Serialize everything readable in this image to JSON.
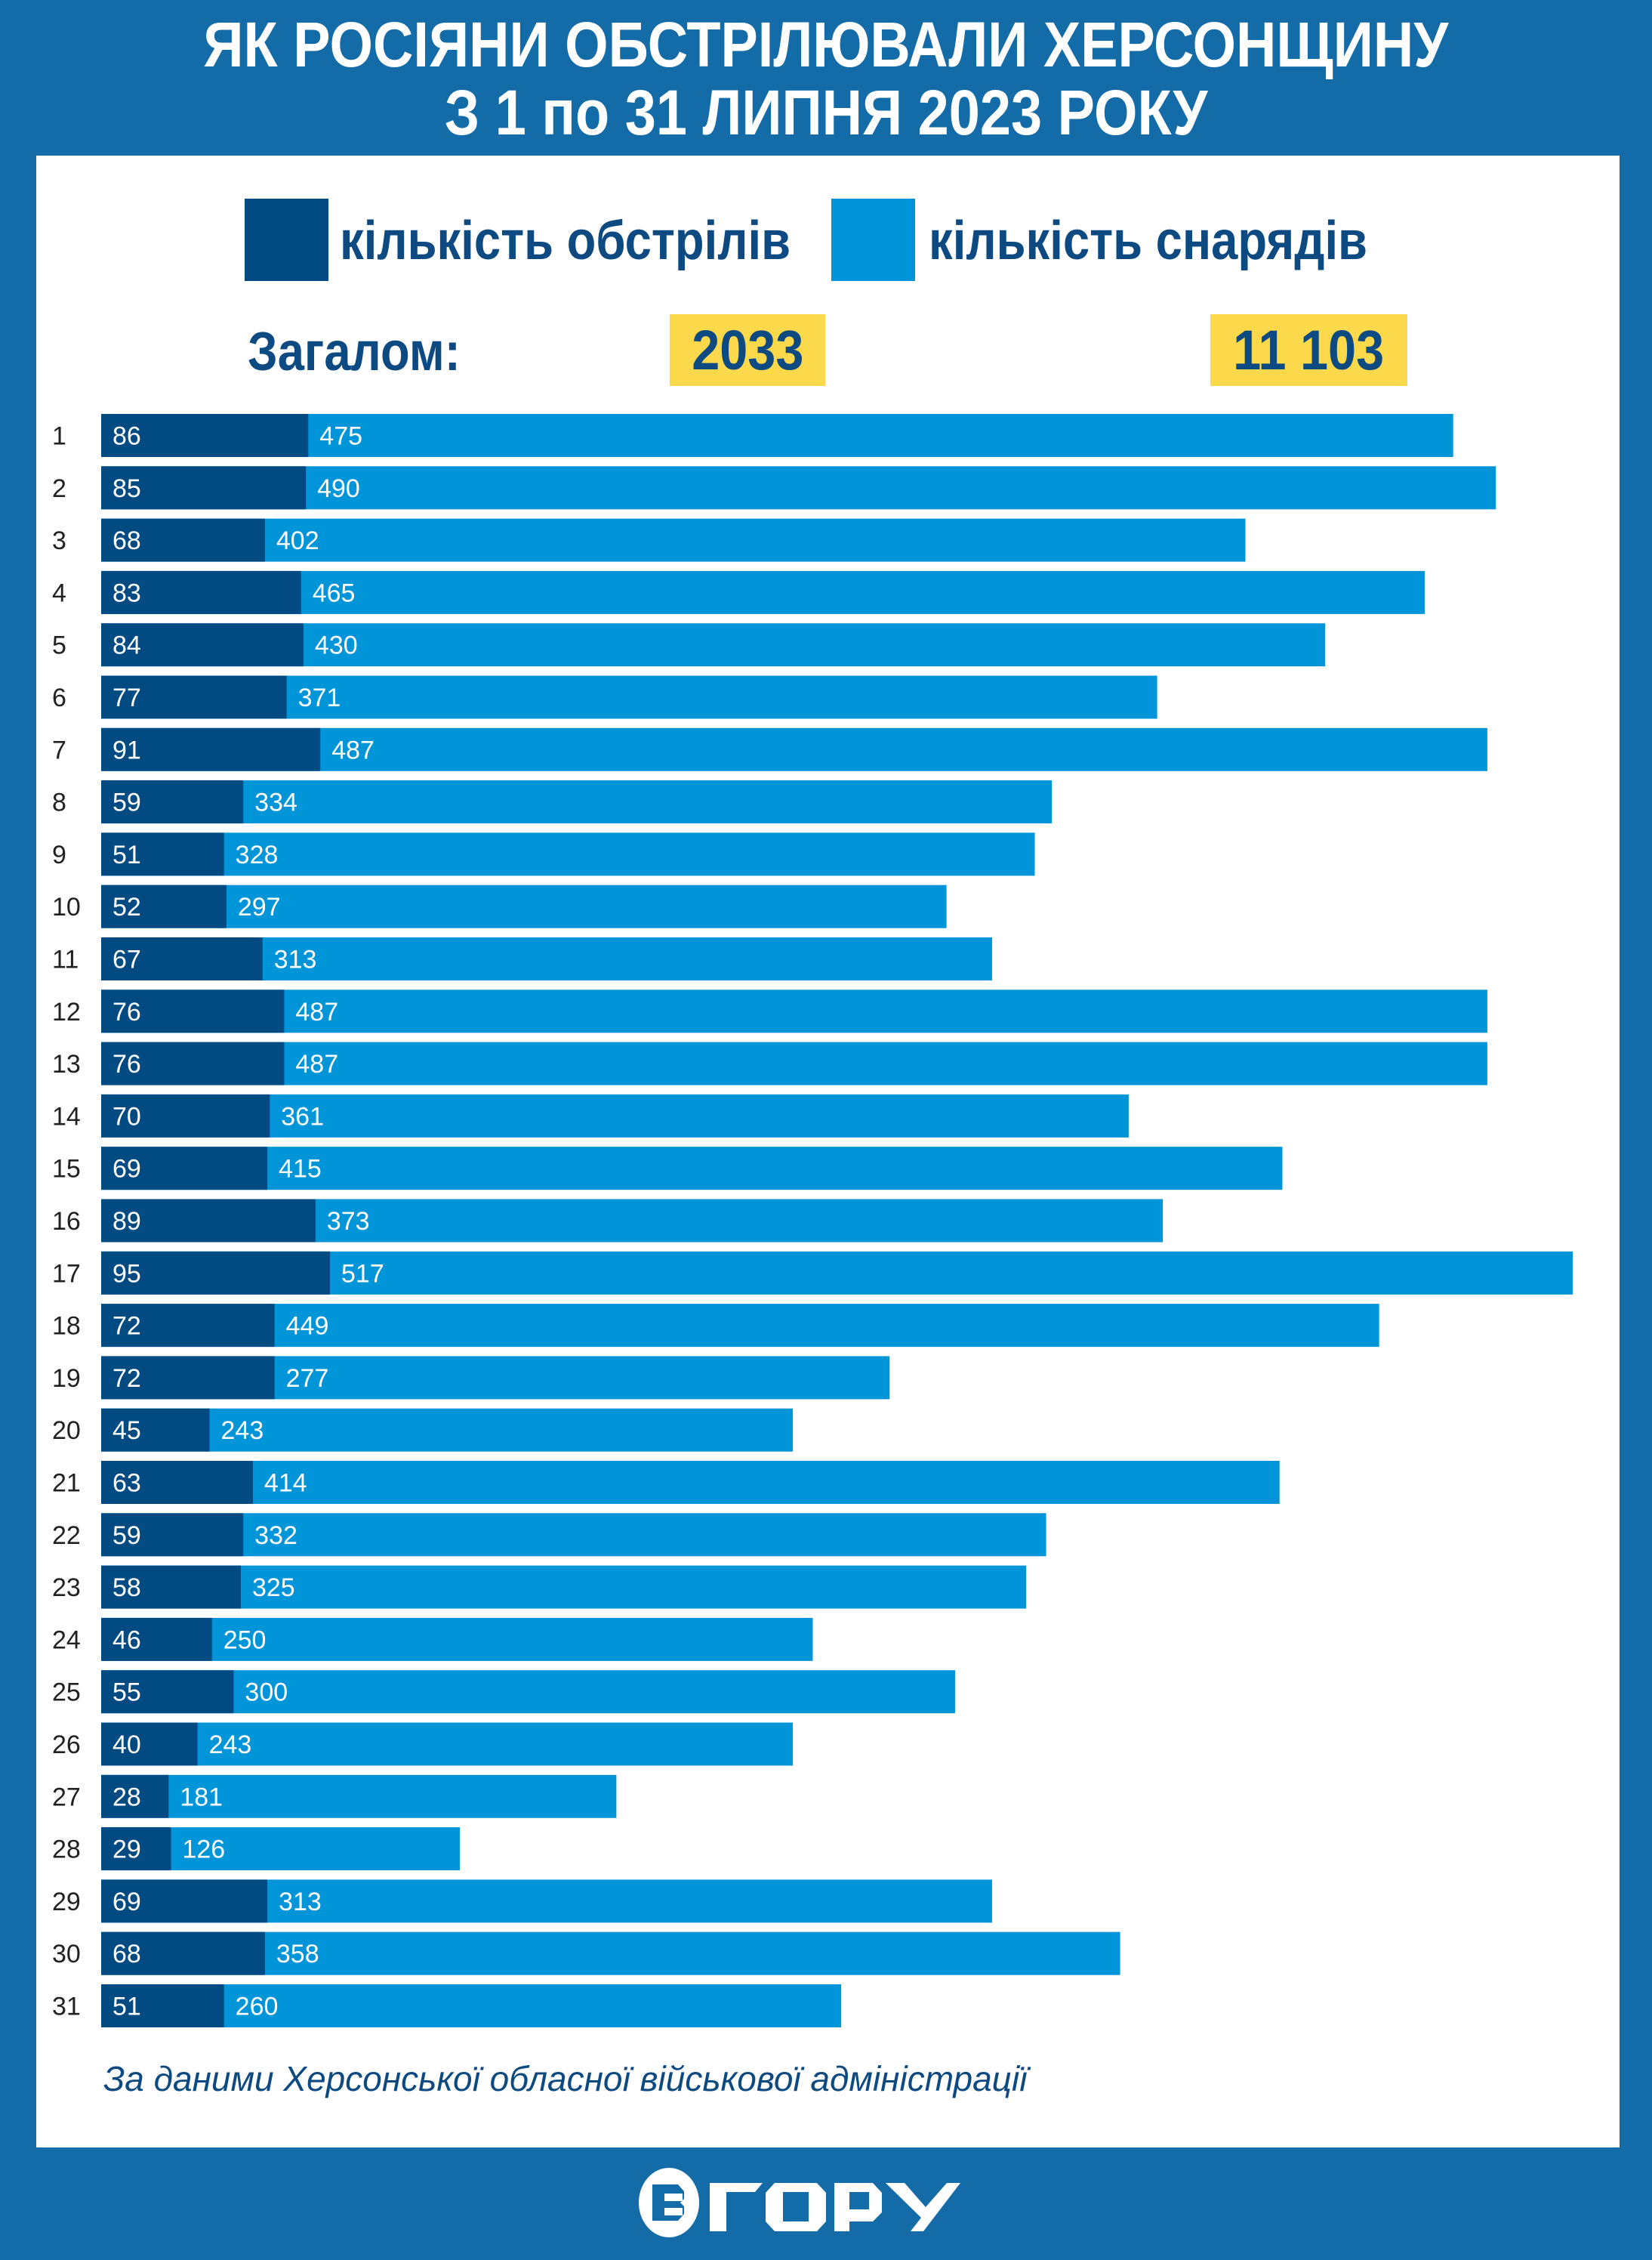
{
  "title_line1": "ЯК РОСІЯНИ ОБСТРІЛЮВАЛИ ХЕРСОНЩИНУ",
  "title_line2": "З 1 по 31 ЛИПНЯ 2023 РОКУ",
  "legend": {
    "attacks": "кількість обстрілів",
    "shells": "кількість снарядів"
  },
  "totals": {
    "label": "Загалом:",
    "attacks": "2033",
    "shells": "11 103"
  },
  "source": "За даними Херсонської обласної військової адміністрації",
  "logo_text": "ВГОРУ",
  "colors": {
    "attacks": "#014b82",
    "shells": "#0095d9",
    "total_bg": "#fcd94a",
    "frame": "#136ba7"
  },
  "chart_data": {
    "type": "bar",
    "orientation": "horizontal",
    "categories": [
      "1",
      "2",
      "3",
      "4",
      "5",
      "6",
      "7",
      "8",
      "9",
      "10",
      "11",
      "12",
      "13",
      "14",
      "15",
      "16",
      "17",
      "18",
      "19",
      "20",
      "21",
      "22",
      "23",
      "24",
      "25",
      "26",
      "27",
      "28",
      "29",
      "30",
      "31"
    ],
    "series": [
      {
        "name": "кількість обстрілів",
        "values": [
          86,
          85,
          68,
          83,
          84,
          77,
          91,
          59,
          51,
          52,
          67,
          76,
          76,
          70,
          69,
          89,
          95,
          72,
          72,
          45,
          63,
          59,
          58,
          46,
          55,
          40,
          28,
          29,
          69,
          68,
          51
        ]
      },
      {
        "name": "кількість снарядів",
        "values": [
          475,
          490,
          402,
          465,
          430,
          371,
          487,
          334,
          328,
          297,
          313,
          487,
          487,
          361,
          415,
          373,
          517,
          449,
          277,
          243,
          414,
          332,
          325,
          250,
          300,
          243,
          181,
          126,
          313,
          358,
          260
        ]
      }
    ],
    "grid": false
  }
}
